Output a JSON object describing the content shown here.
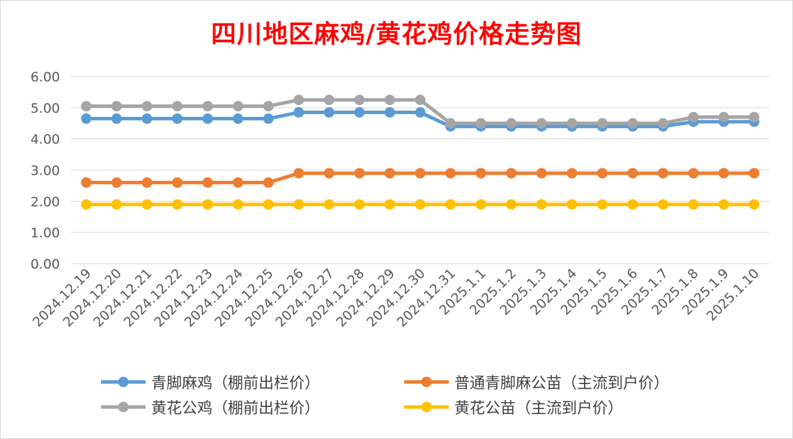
{
  "chart_data": {
    "type": "line",
    "title": "四川地区麻鸡/黄花鸡价格走势图",
    "xlabel": "",
    "ylabel": "",
    "ylim": [
      0,
      6
    ],
    "yticks": [
      "0.00",
      "1.00",
      "2.00",
      "3.00",
      "4.00",
      "5.00",
      "6.00"
    ],
    "grid": true,
    "legend_position": "bottom",
    "categories": [
      "2024.12.19",
      "2024.12.20",
      "2024.12.21",
      "2024.12.22",
      "2024.12.23",
      "2024.12.24",
      "2024.12.25",
      "2024.12.26",
      "2024.12.27",
      "2024.12.28",
      "2024.12.29",
      "2024.12.30",
      "2024.12.31",
      "2025.1.1",
      "2025.1.2",
      "2025.1.3",
      "2025.1.4",
      "2025.1.5",
      "2025.1.6",
      "2025.1.7",
      "2025.1.8",
      "2025.1.9",
      "2025.1.10"
    ],
    "series": [
      {
        "name": "青脚麻鸡（棚前出栏价）",
        "color": "#5b9bd5",
        "values": [
          4.65,
          4.65,
          4.65,
          4.65,
          4.65,
          4.65,
          4.65,
          4.85,
          4.85,
          4.85,
          4.85,
          4.85,
          4.4,
          4.4,
          4.4,
          4.4,
          4.4,
          4.4,
          4.4,
          4.4,
          4.55,
          4.55,
          4.55
        ]
      },
      {
        "name": "普通青脚麻公苗（主流到户价）",
        "color": "#ed7d31",
        "values": [
          2.6,
          2.6,
          2.6,
          2.6,
          2.6,
          2.6,
          2.6,
          2.9,
          2.9,
          2.9,
          2.9,
          2.9,
          2.9,
          2.9,
          2.9,
          2.9,
          2.9,
          2.9,
          2.9,
          2.9,
          2.9,
          2.9,
          2.9
        ]
      },
      {
        "name": "黄花公鸡（棚前出栏价）",
        "color": "#a5a5a5",
        "values": [
          5.05,
          5.05,
          5.05,
          5.05,
          5.05,
          5.05,
          5.05,
          5.25,
          5.25,
          5.25,
          5.25,
          5.25,
          4.5,
          4.5,
          4.5,
          4.5,
          4.5,
          4.5,
          4.5,
          4.5,
          4.7,
          4.7,
          4.7
        ]
      },
      {
        "name": "黄花公苗（主流到户价）",
        "color": "#ffc000",
        "values": [
          1.9,
          1.9,
          1.9,
          1.9,
          1.9,
          1.9,
          1.9,
          1.9,
          1.9,
          1.9,
          1.9,
          1.9,
          1.9,
          1.9,
          1.9,
          1.9,
          1.9,
          1.9,
          1.9,
          1.9,
          1.9,
          1.9,
          1.9
        ]
      }
    ]
  }
}
